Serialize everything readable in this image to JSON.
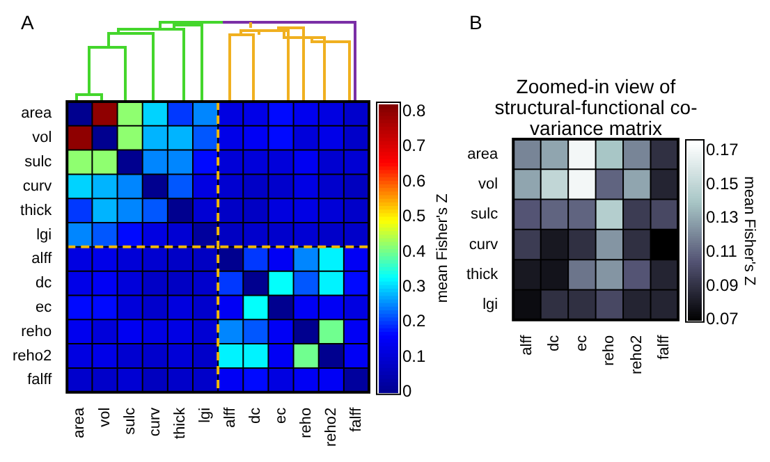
{
  "chart_data": [
    {
      "type": "heatmap",
      "annotations": [
        "A"
      ],
      "clabel": "mean Fisher's Z",
      "categories": [
        "area",
        "vol",
        "sulc",
        "curv",
        "thick",
        "lgi",
        "alff",
        "dc",
        "ec",
        "reho",
        "reho2",
        "falff"
      ],
      "y_categories": [
        "area",
        "vol",
        "sulc",
        "curv",
        "thick",
        "lgi",
        "alff",
        "dc",
        "ec",
        "reho",
        "reho2",
        "falff"
      ],
      "cells": [
        [
          0,
          0.8,
          0.42,
          0.3,
          0.2,
          0.25,
          0.12,
          0.13,
          0.17,
          0.14,
          0.12,
          0.09
        ],
        [
          0.8,
          0,
          0.42,
          0.28,
          0.28,
          0.22,
          0.13,
          0.15,
          0.17,
          0.11,
          0.13,
          0.085
        ],
        [
          0.42,
          0.42,
          0,
          0.25,
          0.25,
          0.17,
          0.105,
          0.11,
          0.11,
          0.145,
          0.095,
          0.1
        ],
        [
          0.3,
          0.28,
          0.25,
          0,
          0.22,
          0.12,
          0.095,
          0.08,
          0.09,
          0.125,
          0.09,
          0.07
        ],
        [
          0.2,
          0.28,
          0.25,
          0.22,
          0,
          0.1,
          0.08,
          0.078,
          0.115,
          0.125,
          0.105,
          0.085
        ],
        [
          0.25,
          0.22,
          0.17,
          0.12,
          0.1,
          0.02,
          0.075,
          0.09,
          0.09,
          0.1,
          0.085,
          0.085
        ],
        [
          0.12,
          0.13,
          0.105,
          0.095,
          0.08,
          0.075,
          0,
          0.2,
          0.15,
          0.25,
          0.32,
          0.15
        ],
        [
          0.13,
          0.15,
          0.11,
          0.08,
          0.078,
          0.09,
          0.2,
          0,
          0.33,
          0.22,
          0.32,
          0.17
        ],
        [
          0.17,
          0.17,
          0.11,
          0.09,
          0.115,
          0.09,
          0.15,
          0.33,
          0,
          0.15,
          0.15,
          0.12
        ],
        [
          0.14,
          0.11,
          0.145,
          0.125,
          0.125,
          0.1,
          0.25,
          0.22,
          0.15,
          0,
          0.4,
          0.15
        ],
        [
          0.12,
          0.13,
          0.095,
          0.09,
          0.105,
          0.085,
          0.32,
          0.32,
          0.15,
          0.4,
          0,
          0.15
        ],
        [
          0.09,
          0.085,
          0.1,
          0.07,
          0.085,
          0.085,
          0.15,
          0.17,
          0.12,
          0.15,
          0.15,
          0.02
        ]
      ],
      "colors": [
        "#00008f",
        "#0000ff",
        "#00ffff",
        "#ffff00",
        "#ff0000",
        "#800000"
      ],
      "clim": [
        0,
        0.82
      ],
      "cticks": [
        0,
        0.1,
        0.2,
        0.3,
        0.4,
        0.5,
        0.6,
        0.7,
        0.8
      ]
    },
    {
      "type": "heatmap",
      "annotations": [
        "B"
      ],
      "title": "Zoomed-in view of structural-functional co-variance matrix",
      "clabel": "mean Fisher's Z",
      "categories": [
        "alff",
        "dc",
        "ec",
        "reho",
        "reho2",
        "falff"
      ],
      "y_categories": [
        "area",
        "vol",
        "sulc",
        "curv",
        "thick",
        "lgi"
      ],
      "cells": [
        [
          0.12,
          0.13,
          0.17,
          0.14,
          0.12,
          0.09
        ],
        [
          0.13,
          0.15,
          0.17,
          0.11,
          0.13,
          0.085
        ],
        [
          0.105,
          0.11,
          0.11,
          0.145,
          0.095,
          0.1
        ],
        [
          0.095,
          0.08,
          0.09,
          0.125,
          0.09,
          0.07
        ],
        [
          0.08,
          0.078,
          0.115,
          0.125,
          0.105,
          0.085
        ],
        [
          0.075,
          0.09,
          0.09,
          0.1,
          0.085,
          0.085
        ]
      ],
      "colors": [
        "#000000",
        "#545474",
        "#a8c6c6",
        "#ffffff"
      ],
      "clim": [
        0.07,
        0.175
      ],
      "cticks": [
        0.07,
        0.09,
        0.11,
        0.13,
        0.15,
        0.17
      ]
    }
  ]
}
